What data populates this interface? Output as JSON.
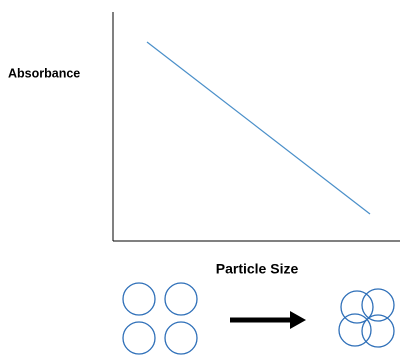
{
  "y_axis_label": "Absorbance",
  "x_axis_label": "Particle Size"
}
